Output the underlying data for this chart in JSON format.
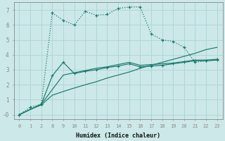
{
  "xlabel": "Humidex (Indice chaleur)",
  "bg_color": "#cce8e8",
  "line_color": "#1a7a6e",
  "grid_color": "#aad4d4",
  "xtick_labels": [
    "0",
    "1",
    "2",
    "8",
    "9",
    "10",
    "11",
    "12",
    "13",
    "14",
    "15",
    "16",
    "17",
    "18",
    "19",
    "20",
    "21",
    "22",
    "23"
  ],
  "ytick_labels": [
    "-0",
    "1",
    "2",
    "3",
    "4",
    "5",
    "6",
    "7"
  ],
  "ylim": [
    -0.3,
    7.5
  ],
  "line1_xi": [
    0,
    1,
    2,
    3,
    4,
    5,
    6,
    7,
    8,
    9,
    10,
    11,
    12,
    13,
    14,
    15,
    16,
    17,
    18
  ],
  "line1_y": [
    -0.0,
    0.5,
    0.7,
    6.8,
    6.3,
    6.0,
    6.9,
    6.65,
    6.7,
    7.1,
    7.2,
    7.2,
    5.4,
    5.0,
    4.9,
    4.5,
    3.5,
    3.6,
    3.7
  ],
  "line2_xi": [
    0,
    2,
    4,
    5,
    6,
    7,
    8,
    9,
    10,
    11,
    12,
    13,
    14,
    15,
    16,
    17,
    18
  ],
  "line2_y": [
    -0.0,
    0.7,
    2.65,
    2.8,
    2.95,
    3.1,
    3.2,
    3.35,
    3.5,
    3.3,
    3.35,
    3.4,
    3.45,
    3.55,
    3.65,
    3.65,
    3.7
  ],
  "line3_xi": [
    0,
    2,
    3,
    4,
    5,
    6,
    7,
    8,
    9,
    10,
    11,
    12,
    13,
    14,
    15,
    16,
    17,
    18
  ],
  "line3_y": [
    -0.0,
    0.7,
    2.6,
    3.5,
    2.75,
    2.9,
    3.0,
    3.15,
    3.25,
    3.4,
    3.2,
    3.25,
    3.3,
    3.4,
    3.5,
    3.6,
    3.6,
    3.65
  ],
  "line4_xi": [
    0,
    1,
    2,
    3,
    4,
    5,
    6,
    7,
    8,
    9,
    10,
    11,
    12,
    13,
    14,
    15,
    16,
    17,
    18
  ],
  "line4_y": [
    -0.0,
    0.35,
    0.65,
    1.3,
    1.55,
    1.78,
    2.0,
    2.2,
    2.45,
    2.65,
    2.85,
    3.1,
    3.3,
    3.5,
    3.7,
    3.9,
    4.1,
    4.35,
    4.5
  ]
}
